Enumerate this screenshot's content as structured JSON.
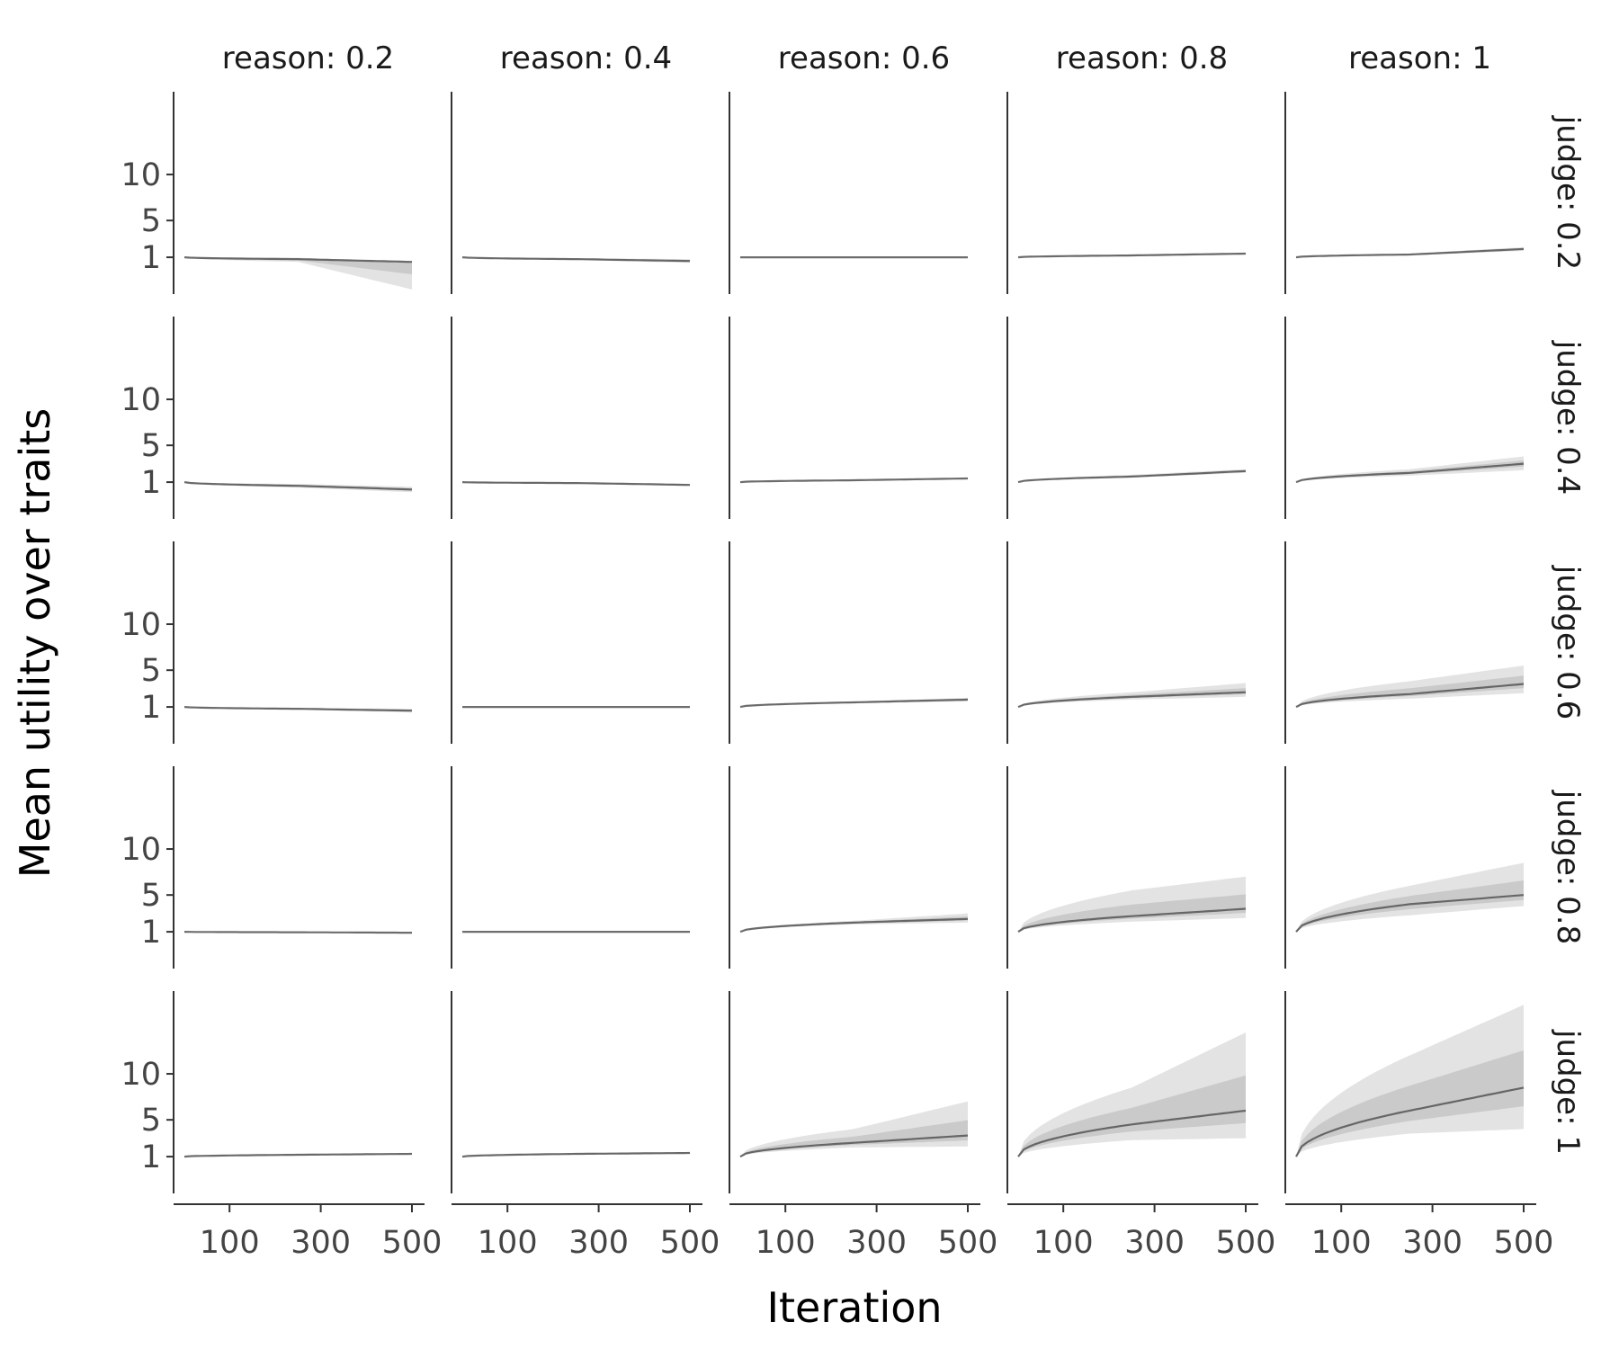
{
  "chart_data": {
    "type": "line",
    "xlabel": "Iteration",
    "ylabel": "Mean utility over traits",
    "x_ticks": [
      100,
      300,
      500
    ],
    "x_range": [
      1,
      500
    ],
    "y_ticks": [
      1,
      5,
      10
    ],
    "y_range": [
      -3,
      19
    ],
    "grid": false,
    "legend": "none",
    "colors": {
      "band": "#9a9a9a",
      "line": "#555555",
      "axis": "#333333"
    },
    "col_facet": "reason",
    "row_facet": "judge",
    "col_labels": [
      "reason: 0.2",
      "reason: 0.4",
      "reason: 0.6",
      "reason: 0.8",
      "reason: 1"
    ],
    "row_labels": [
      "judge: 0.2",
      "judge: 0.4",
      "judge: 0.6",
      "judge: 0.8",
      "judge: 1"
    ],
    "panels": [
      [
        {
          "center": [
            1,
            0.8,
            0.5
          ],
          "low": [
            1,
            0.5,
            -2.5
          ],
          "high": [
            1,
            0.95,
            0.5
          ]
        },
        {
          "center": [
            1,
            0.8,
            0.6
          ],
          "low": [
            1,
            0.7,
            0.4
          ],
          "high": [
            1,
            0.9,
            0.8
          ]
        },
        {
          "center": [
            1,
            1.0,
            1.0
          ],
          "low": [
            1,
            0.98,
            0.98
          ],
          "high": [
            1,
            1.02,
            1.02
          ]
        },
        {
          "center": [
            1,
            1.2,
            1.4
          ],
          "low": [
            1,
            1.1,
            1.3
          ],
          "high": [
            1,
            1.3,
            1.5
          ]
        },
        {
          "center": [
            1,
            1.3,
            1.9
          ],
          "low": [
            1,
            1.2,
            1.7
          ],
          "high": [
            1,
            1.4,
            2.1
          ]
        }
      ],
      [
        {
          "center": [
            1,
            0.6,
            0.2
          ],
          "low": [
            1,
            0.4,
            -0.1
          ],
          "high": [
            1,
            0.8,
            0.5
          ]
        },
        {
          "center": [
            1,
            0.9,
            0.7
          ],
          "low": [
            1,
            0.8,
            0.6
          ],
          "high": [
            1,
            1.0,
            0.8
          ]
        },
        {
          "center": [
            1,
            1.2,
            1.4
          ],
          "low": [
            1,
            1.15,
            1.35
          ],
          "high": [
            1,
            1.25,
            1.45
          ]
        },
        {
          "center": [
            1,
            1.6,
            2.2
          ],
          "low": [
            1,
            1.5,
            2.0
          ],
          "high": [
            1,
            1.8,
            2.4
          ]
        },
        {
          "center": [
            1,
            2.0,
            3.0
          ],
          "low": [
            1,
            1.7,
            2.3
          ],
          "high": [
            1,
            2.4,
            3.8
          ]
        }
      ],
      [
        {
          "center": [
            1,
            0.8,
            0.6
          ],
          "low": [
            1,
            0.7,
            0.4
          ],
          "high": [
            1,
            0.9,
            0.8
          ]
        },
        {
          "center": [
            1,
            1.0,
            1.0
          ],
          "low": [
            1,
            0.98,
            0.98
          ],
          "high": [
            1,
            1.02,
            1.02
          ]
        },
        {
          "center": [
            1,
            1.5,
            1.8
          ],
          "low": [
            1,
            1.4,
            1.6
          ],
          "high": [
            1,
            1.6,
            2.0
          ]
        },
        {
          "center": [
            1,
            2.1,
            2.6
          ],
          "low": [
            1,
            1.8,
            2.1
          ],
          "high": [
            1,
            2.6,
            3.6
          ]
        },
        {
          "center": [
            1,
            2.4,
            3.5
          ],
          "low": [
            1,
            1.9,
            2.5
          ],
          "high": [
            1,
            3.8,
            5.5
          ]
        }
      ],
      [
        {
          "center": [
            1,
            0.95,
            0.9
          ],
          "low": [
            1,
            0.93,
            0.87
          ],
          "high": [
            1,
            0.97,
            0.93
          ]
        },
        {
          "center": [
            1,
            1.0,
            1.0
          ],
          "low": [
            1,
            0.98,
            0.98
          ],
          "high": [
            1,
            1.02,
            1.02
          ]
        },
        {
          "center": [
            1,
            2.0,
            2.4
          ],
          "low": [
            1,
            1.8,
            2.0
          ],
          "high": [
            1,
            2.2,
            3.0
          ]
        },
        {
          "center": [
            1,
            2.7,
            3.5
          ],
          "low": [
            1,
            2.1,
            2.5
          ],
          "high": [
            1,
            5.5,
            7.0
          ]
        },
        {
          "center": [
            1,
            4.0,
            5.0
          ],
          "low": [
            1,
            2.8,
            3.8
          ],
          "high": [
            1,
            6.0,
            8.5
          ]
        }
      ],
      [
        {
          "center": [
            1,
            1.2,
            1.3
          ],
          "low": [
            1,
            1.15,
            1.25
          ],
          "high": [
            1,
            1.3,
            1.4
          ]
        },
        {
          "center": [
            1,
            1.3,
            1.4
          ],
          "low": [
            1,
            1.2,
            1.3
          ],
          "high": [
            1,
            1.4,
            1.5
          ]
        },
        {
          "center": [
            1,
            2.5,
            3.3
          ],
          "low": [
            1,
            2.0,
            2.1
          ],
          "high": [
            1,
            4.0,
            7.0
          ]
        },
        {
          "center": [
            1,
            4.5,
            6.0
          ],
          "low": [
            1,
            2.8,
            3.0
          ],
          "high": [
            1,
            8.5,
            14.5
          ]
        },
        {
          "center": [
            1,
            6.0,
            8.5
          ],
          "low": [
            1,
            3.5,
            4.0
          ],
          "high": [
            1,
            12.0,
            17.5
          ]
        }
      ]
    ]
  }
}
